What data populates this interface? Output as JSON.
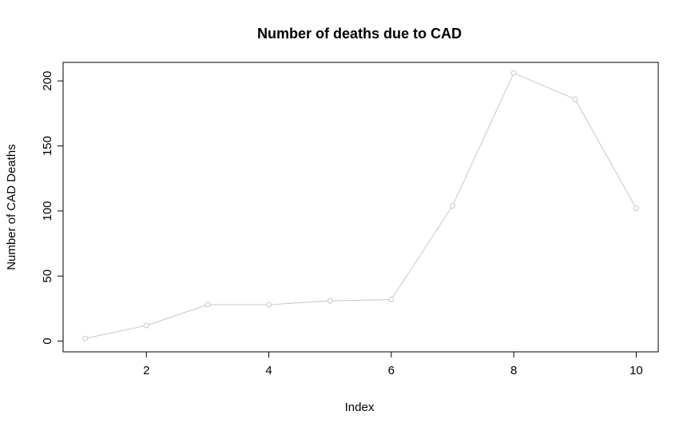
{
  "chart_data": {
    "type": "line",
    "title": "Number of deaths due to CAD",
    "xlabel": "Index",
    "ylabel": "Number of CAD Deaths",
    "x": [
      1,
      2,
      3,
      4,
      5,
      6,
      7,
      8,
      9,
      10
    ],
    "series": [
      {
        "name": "CAD deaths",
        "values": [
          2,
          12,
          28,
          28,
          31,
          32,
          104,
          206,
          186,
          102
        ],
        "color": "#c8c8c8",
        "marker": "open-circle"
      }
    ],
    "xlim": [
      0.64,
      10.36
    ],
    "ylim": [
      -8.24,
      214.24
    ],
    "x_ticks": [
      2,
      4,
      6,
      8,
      10
    ],
    "x_tick_labels": [
      "2",
      "4",
      "6",
      "8",
      "10"
    ],
    "y_ticks": [
      0,
      50,
      100,
      150,
      200
    ],
    "y_tick_labels": [
      "0",
      "50",
      "100",
      "150",
      "200"
    ],
    "grid": false,
    "legend": "none"
  }
}
